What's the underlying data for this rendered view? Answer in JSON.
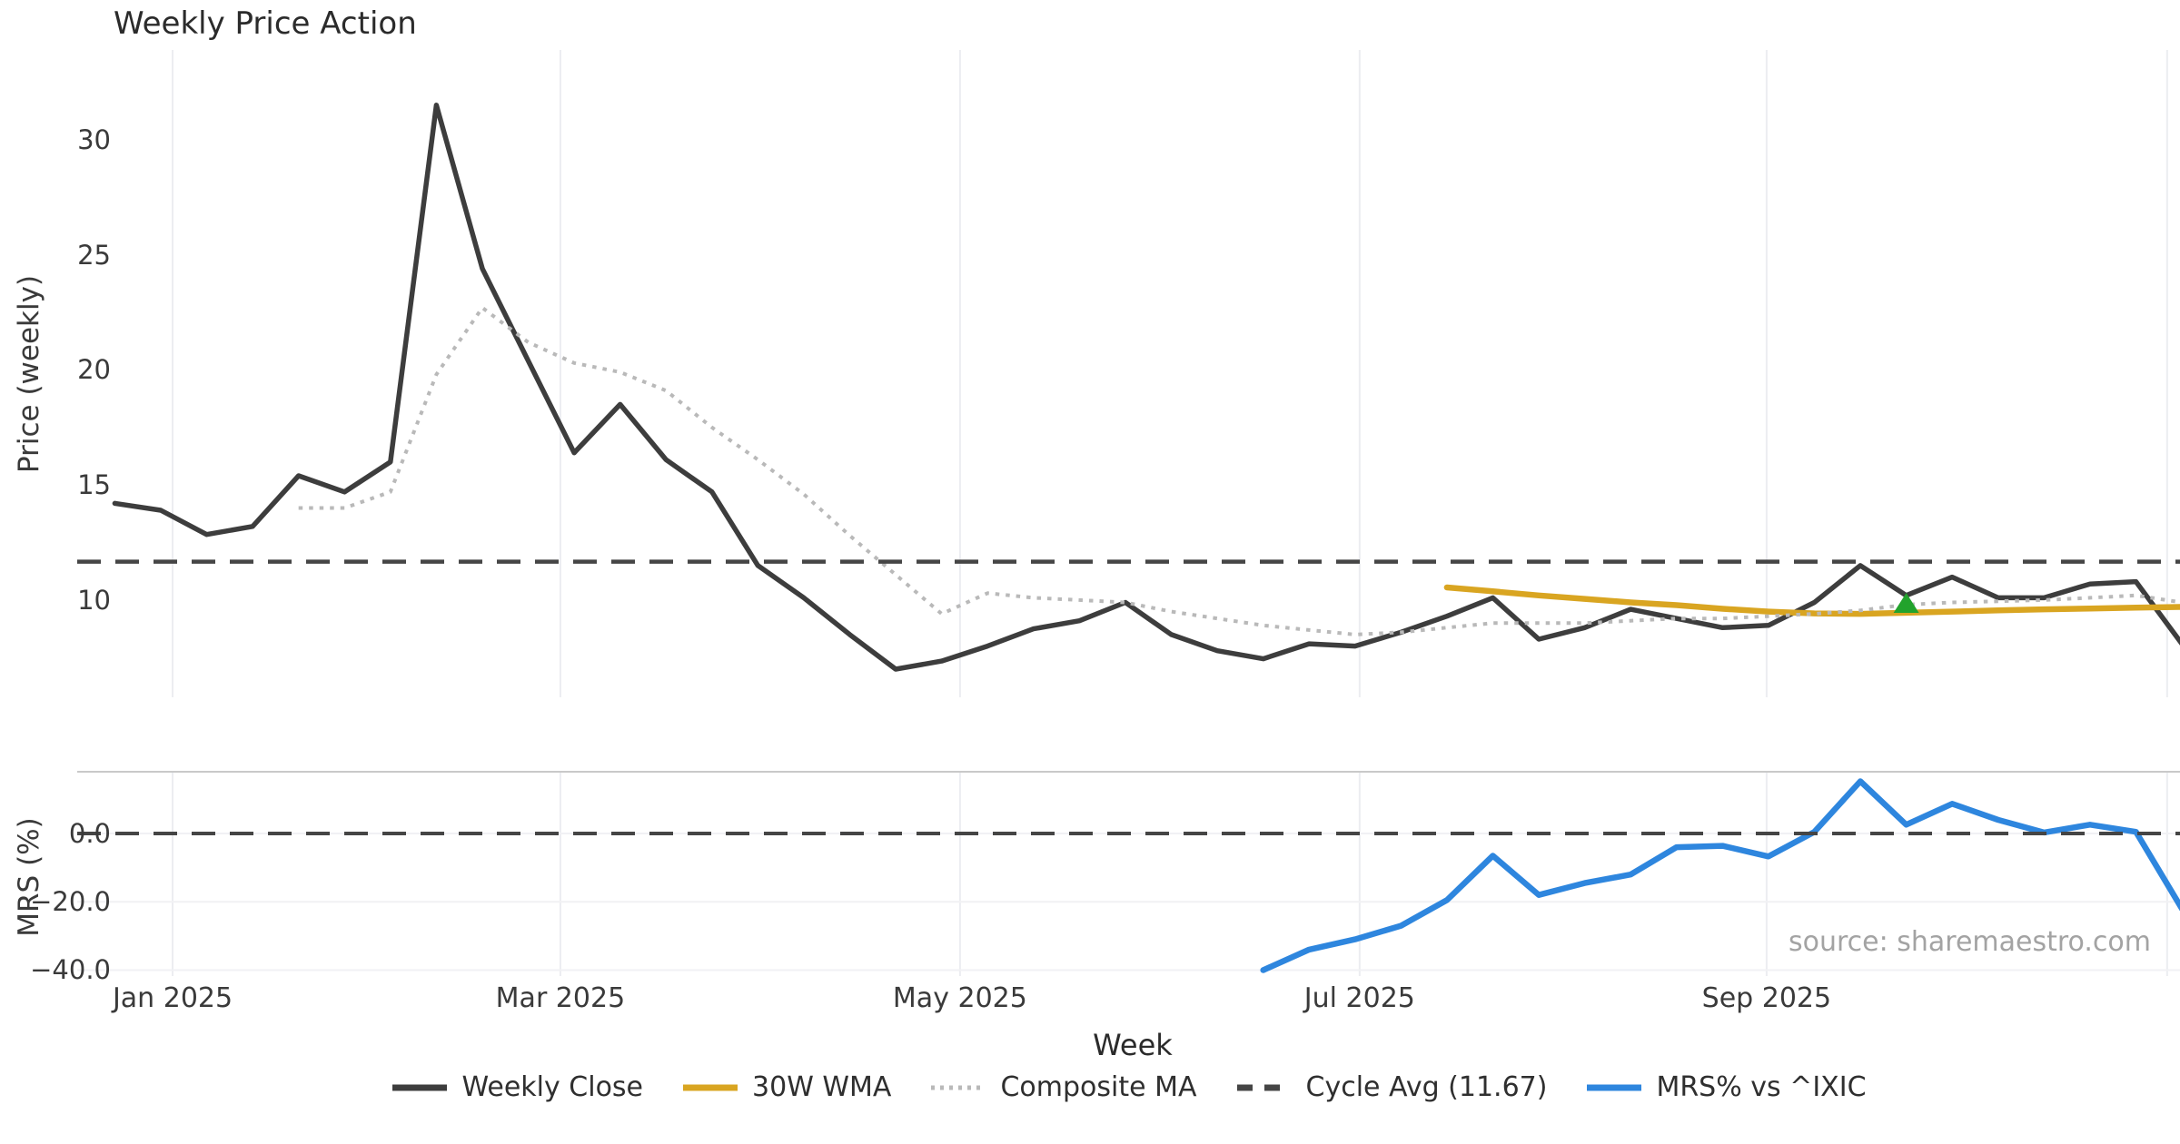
{
  "title": "Weekly Price Action",
  "xlabel": "Week",
  "source_note": "source: sharemaestro.com",
  "colors": {
    "weekly_close": "#3d3d3d",
    "wma_30w": "#d9a521",
    "composite_ma": "#b9b9b9",
    "cycle_avg": "#454545",
    "mrs_blue": "#2e86de",
    "marker_green": "#22a32c",
    "grid": "#ecedf1",
    "grid_h": "#f1f1f4",
    "spine": "#c9c9c9",
    "tick_text": "#3a3a3a",
    "source_text": "#a3a3a3"
  },
  "chart_data": [
    {
      "type": "line",
      "panel": "price",
      "title": "Weekly Price Action",
      "ylabel": "Price (weekly)",
      "ylim": [
        5.5,
        33.9
      ],
      "yticks": [
        {
          "value": 30,
          "label": "30"
        },
        {
          "value": 25,
          "label": "25"
        },
        {
          "value": 20,
          "label": "20"
        },
        {
          "value": 15,
          "label": "15"
        },
        {
          "value": 10,
          "label": "10"
        }
      ],
      "grid": "vertical-only",
      "series": [
        {
          "id": "weekly_close",
          "name": "Weekly Close",
          "style": "solid",
          "width": 5.5,
          "color": "#3d3d3d",
          "start_week": 0,
          "values": [
            14.2,
            13.9,
            12.85,
            13.2,
            15.4,
            14.7,
            16.0,
            31.5,
            24.4,
            20.4,
            16.4,
            18.5,
            16.1,
            14.7,
            11.5,
            10.1,
            8.5,
            7.0,
            7.35,
            8.0,
            8.75,
            9.1,
            9.9,
            8.5,
            7.8,
            7.45,
            8.1,
            8.0,
            8.6,
            9.3,
            10.1,
            8.3,
            8.8,
            9.6,
            9.2,
            8.8,
            8.9,
            9.9,
            11.5,
            10.2,
            11.0,
            10.1,
            10.1,
            10.7,
            10.8,
            8.1
          ]
        },
        {
          "id": "wma_30w",
          "name": "30W WMA",
          "style": "solid",
          "width": 6.5,
          "color": "#d9a521",
          "start_week": 29,
          "values": [
            10.55,
            10.38,
            10.2,
            10.05,
            9.9,
            9.78,
            9.62,
            9.5,
            9.42,
            9.4,
            9.45,
            9.5,
            9.55,
            9.6,
            9.63,
            9.67,
            9.7
          ]
        },
        {
          "id": "composite_ma",
          "name": "Composite MA",
          "style": "dotted",
          "width": 4,
          "color": "#b9b9b9",
          "start_week": 4,
          "values": [
            14.0,
            14.0,
            14.7,
            19.8,
            22.7,
            21.2,
            20.3,
            19.9,
            19.1,
            17.5,
            16.1,
            14.6,
            12.8,
            11.1,
            9.4,
            10.3,
            10.1,
            10.0,
            9.9,
            9.5,
            9.2,
            8.9,
            8.7,
            8.5,
            8.6,
            8.8,
            9.0,
            9.0,
            9.0,
            9.1,
            9.2,
            9.2,
            9.3,
            9.4,
            9.55,
            9.8,
            9.9,
            9.95,
            10.0,
            10.1,
            10.2,
            9.9
          ]
        },
        {
          "id": "cycle_avg",
          "name": "Cycle Avg (11.67)",
          "style": "dashed",
          "width": 4.5,
          "color": "#454545",
          "hline": 11.67
        }
      ],
      "marker": {
        "shape": "triangle-up",
        "color": "#22a32c",
        "week": 39,
        "value": 9.8
      }
    },
    {
      "type": "line",
      "panel": "mrs",
      "ylabel": "MRS (%)",
      "ylim": [
        -43.6,
        18.1
      ],
      "yticks": [
        {
          "value": 0,
          "label": "0.0"
        },
        {
          "value": -20,
          "label": "−20.0"
        },
        {
          "value": -40,
          "label": "−40.0"
        }
      ],
      "grid": "both",
      "series": [
        {
          "id": "mrs_line",
          "name": "MRS% vs ^IXIC",
          "style": "solid",
          "width": 6.5,
          "color": "#2e86de",
          "start_week": 25,
          "values": [
            -40,
            -34,
            -31,
            -27,
            -19.5,
            -6.5,
            -18,
            -14.5,
            -12,
            -4,
            -3.6,
            -6.7,
            0.5,
            15.3,
            2.6,
            8.7,
            4.0,
            0.3,
            2.6,
            0.5,
            -22
          ]
        },
        {
          "id": "mrs_zero",
          "name": "zero-line",
          "style": "dashed",
          "width": 4,
          "color": "#454545",
          "hline": 0
        }
      ]
    }
  ],
  "x_axis": {
    "label": "Week",
    "ticks": [
      {
        "week": 1.258,
        "label": "Jan 2025"
      },
      {
        "week": 9.7,
        "label": "Mar 2025"
      },
      {
        "week": 18.4,
        "label": "May 2025"
      },
      {
        "week": 27.1,
        "label": "Jul 2025"
      },
      {
        "week": 35.96,
        "label": "Sep 2025"
      },
      {
        "week": 44.68,
        "label": ""
      }
    ]
  },
  "legend": {
    "items": [
      {
        "label": "Weekly Close",
        "color": "#3d3d3d",
        "style": "solid"
      },
      {
        "label": "30W WMA",
        "color": "#d9a521",
        "style": "solid"
      },
      {
        "label": "Composite MA",
        "color": "#b9b9b9",
        "style": "dotted"
      },
      {
        "label": "Cycle Avg (11.67)",
        "color": "#454545",
        "style": "dashed"
      },
      {
        "label": "MRS% vs ^IXIC",
        "color": "#2e86de",
        "style": "solid"
      }
    ]
  }
}
